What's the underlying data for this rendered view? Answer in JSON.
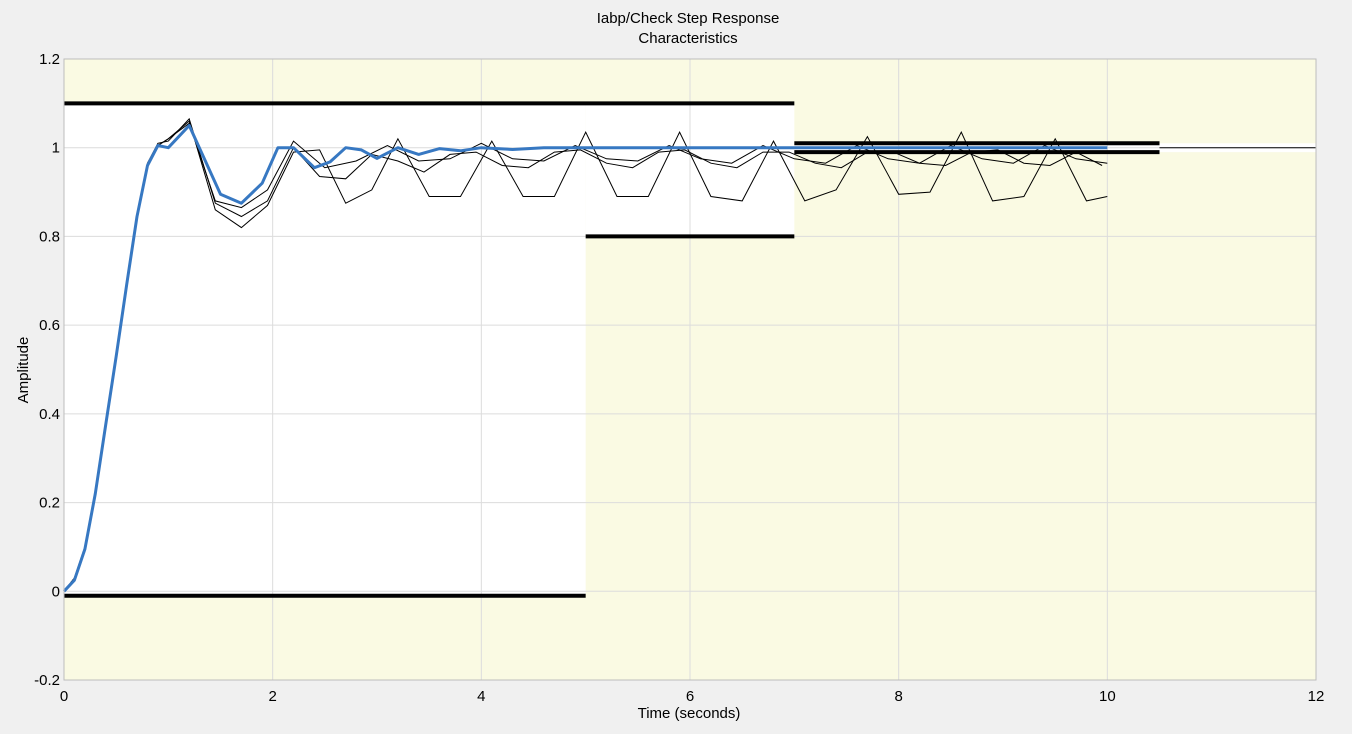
{
  "colors": {
    "figure_bg": "#f0f0f0",
    "violation_region": "#fafae3",
    "allowed_region": "#ffffff",
    "bound_line": "#000000",
    "grid": "#dcdcdc",
    "nominal_response": "#3778c2",
    "perturbed_response": "#000000",
    "axes_box": "#bdbdbd"
  },
  "chart_data": {
    "type": "line",
    "title_lines": [
      "Iabp/Check Step Response",
      "Characteristics"
    ],
    "xlabel": "Time (seconds)",
    "ylabel": "Amplitude",
    "xlim": [
      0,
      12
    ],
    "ylim": [
      -0.2,
      1.2
    ],
    "xticks": [
      0,
      2,
      4,
      6,
      8,
      10,
      12
    ],
    "xtick_labels": [
      "0",
      "2",
      "4",
      "6",
      "8",
      "10",
      "12"
    ],
    "yticks": [
      -0.2,
      0,
      0.2,
      0.4,
      0.6,
      0.8,
      1,
      1.2
    ],
    "ytick_labels": [
      "-0.2",
      "0",
      "0.2",
      "0.4",
      "0.6",
      "0.8",
      "1",
      "1.2"
    ],
    "grid": true,
    "step_bounds": {
      "upper": [
        {
          "x": [
            0,
            7
          ],
          "y": 1.1
        },
        {
          "x": [
            7,
            10.5
          ],
          "y": 1.01
        }
      ],
      "lower": [
        {
          "x": [
            0,
            5
          ],
          "y": -0.01
        },
        {
          "x": [
            5,
            7
          ],
          "y": 0.8
        },
        {
          "x": [
            7,
            10.5
          ],
          "y": 0.99
        }
      ],
      "final_value": 1,
      "final_line_x": [
        10.5,
        12
      ]
    },
    "series": [
      {
        "role": "nominal",
        "x": [
          0,
          0.1,
          0.2,
          0.3,
          0.4,
          0.5,
          0.6,
          0.7,
          0.8,
          0.9,
          1.0,
          1.2,
          1.5,
          1.7,
          1.9,
          2.05,
          2.2,
          2.4,
          2.55,
          2.7,
          2.85,
          3.0,
          3.2,
          3.4,
          3.6,
          3.8,
          4.0,
          4.3,
          4.6,
          5.0,
          6.0,
          7.0,
          8.0,
          9.0,
          10.0
        ],
        "y": [
          0,
          0.025,
          0.095,
          0.22,
          0.375,
          0.53,
          0.69,
          0.845,
          0.96,
          1.005,
          1.0,
          1.05,
          0.895,
          0.875,
          0.92,
          1.0,
          1.0,
          0.955,
          0.968,
          1.0,
          0.995,
          0.976,
          1.0,
          0.985,
          0.998,
          0.993,
          1.0,
          0.996,
          1.0,
          1.0,
          1.0,
          1.0,
          1.0,
          1.0,
          1.0
        ]
      },
      {
        "role": "perturbed",
        "x": [
          0,
          0.1,
          0.2,
          0.3,
          0.4,
          0.5,
          0.6,
          0.7,
          0.8,
          0.9,
          1.0,
          1.2,
          1.45,
          1.7,
          1.95,
          2.2,
          2.45,
          2.7,
          2.95,
          3.2,
          3.45,
          3.7,
          3.95,
          4.2,
          4.45,
          4.7,
          4.95,
          5.2,
          5.45,
          5.7,
          5.95,
          6.2,
          6.45,
          6.7,
          6.95,
          7.2,
          7.45,
          7.7,
          7.95,
          8.2,
          8.45,
          8.7,
          8.95,
          9.2,
          9.45,
          9.7,
          9.95
        ],
        "y": [
          0,
          0.03,
          0.1,
          0.225,
          0.38,
          0.535,
          0.695,
          0.85,
          0.965,
          1.01,
          1.015,
          1.065,
          0.875,
          0.845,
          0.88,
          1.0,
          0.935,
          0.93,
          0.985,
          0.97,
          0.945,
          0.985,
          0.99,
          0.96,
          0.955,
          0.99,
          0.995,
          0.965,
          0.955,
          0.99,
          0.995,
          0.965,
          0.955,
          0.99,
          0.99,
          0.965,
          0.955,
          0.99,
          0.99,
          0.965,
          0.96,
          0.99,
          0.995,
          0.965,
          0.96,
          0.99,
          0.96
        ]
      },
      {
        "role": "perturbed",
        "x": [
          0,
          0.1,
          0.2,
          0.3,
          0.4,
          0.5,
          0.6,
          0.7,
          0.8,
          0.9,
          1.0,
          1.2,
          1.45,
          1.7,
          1.95,
          2.2,
          2.5,
          2.8,
          3.1,
          3.4,
          3.7,
          4.0,
          4.3,
          4.6,
          4.9,
          5.2,
          5.5,
          5.8,
          6.1,
          6.4,
          6.7,
          7.0,
          7.3,
          7.6,
          7.9,
          8.2,
          8.5,
          8.8,
          9.1,
          9.4,
          9.7,
          10.0
        ],
        "y": [
          0,
          0.03,
          0.1,
          0.225,
          0.38,
          0.535,
          0.695,
          0.85,
          0.96,
          1.005,
          1.02,
          1.055,
          0.88,
          0.865,
          0.905,
          1.015,
          0.955,
          0.97,
          1.005,
          0.97,
          0.975,
          1.01,
          0.975,
          0.97,
          1.005,
          0.975,
          0.97,
          1.005,
          0.975,
          0.965,
          1.005,
          0.975,
          0.965,
          1.005,
          0.975,
          0.965,
          1.005,
          0.975,
          0.965,
          1.005,
          0.975,
          0.965
        ]
      },
      {
        "role": "perturbed",
        "x": [
          0,
          0.1,
          0.2,
          0.3,
          0.4,
          0.5,
          0.6,
          0.7,
          0.8,
          0.9,
          1.0,
          1.2,
          1.45,
          1.7,
          1.95,
          2.2,
          2.45,
          2.7,
          2.95,
          3.2,
          3.5,
          3.8,
          4.1,
          4.4,
          4.7,
          5.0,
          5.3,
          5.6,
          5.9,
          6.2,
          6.5,
          6.8,
          7.1,
          7.4,
          7.7,
          8.0,
          8.3,
          8.6,
          8.9,
          9.2,
          9.5,
          9.8,
          10.0
        ],
        "y": [
          0,
          0.03,
          0.1,
          0.225,
          0.38,
          0.535,
          0.695,
          0.85,
          0.965,
          1.005,
          1.02,
          1.06,
          0.86,
          0.82,
          0.87,
          0.99,
          0.995,
          0.875,
          0.905,
          1.02,
          0.89,
          0.89,
          1.015,
          0.89,
          0.89,
          1.035,
          0.89,
          0.89,
          1.035,
          0.89,
          0.88,
          1.015,
          0.88,
          0.905,
          1.025,
          0.895,
          0.9,
          1.035,
          0.88,
          0.89,
          1.02,
          0.88,
          0.89
        ]
      }
    ]
  }
}
